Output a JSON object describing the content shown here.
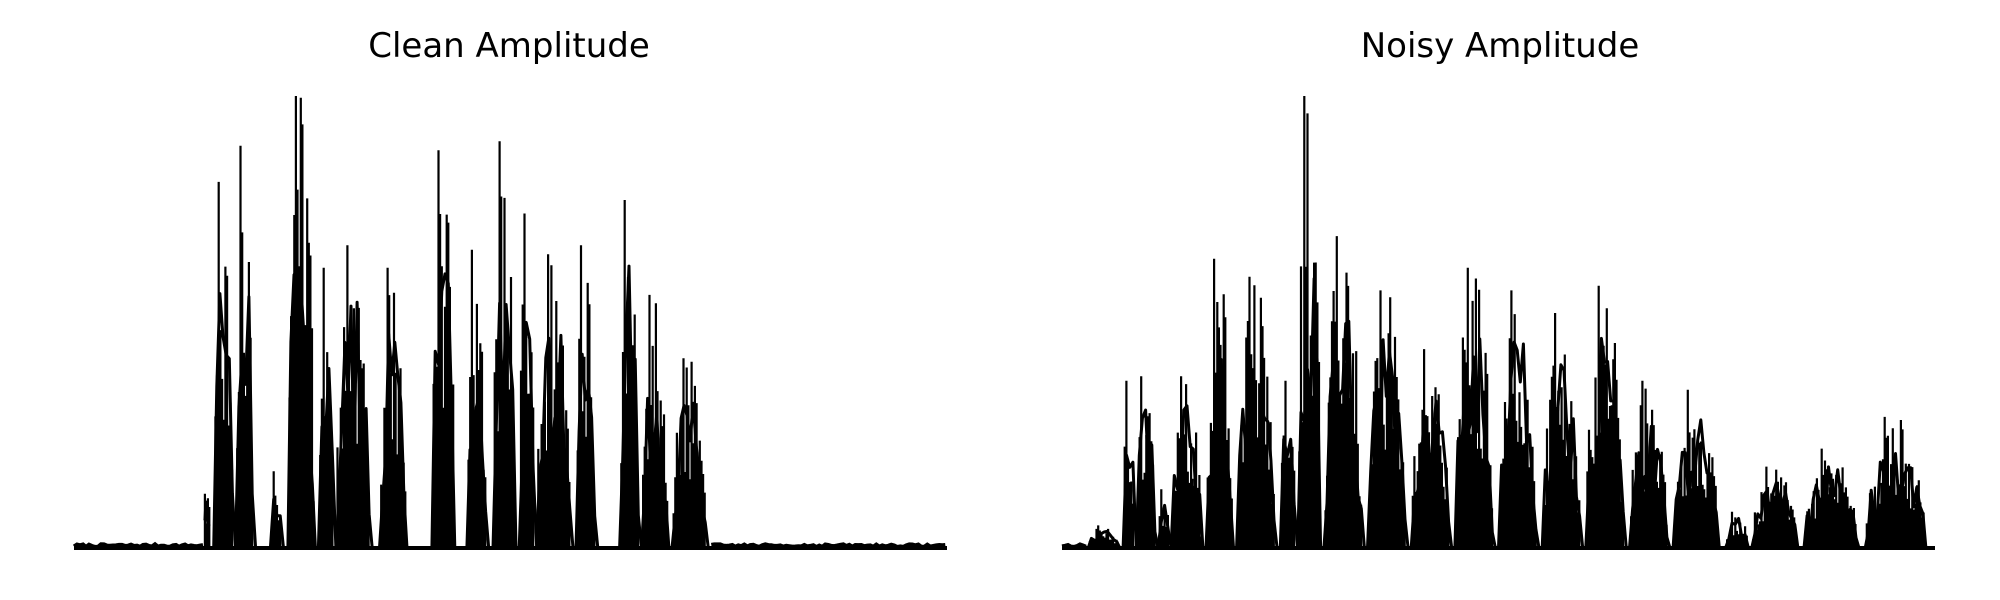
{
  "chart_data": [
    {
      "type": "line",
      "title": "Clean Amplitude",
      "xlabel": "",
      "ylabel": "",
      "axes_visible": false,
      "grid": false,
      "ylim": [
        0,
        1
      ],
      "color": "#000000",
      "segments": [
        {
          "start": 0.0,
          "end": 0.15,
          "peak": 0.01,
          "style": "flat"
        },
        {
          "start": 0.15,
          "end": 0.155,
          "peak": 0.12,
          "style": "spike"
        },
        {
          "start": 0.16,
          "end": 0.185,
          "peak": 0.81,
          "style": "burst"
        },
        {
          "start": 0.185,
          "end": 0.208,
          "peak": 0.89,
          "style": "burst"
        },
        {
          "start": 0.225,
          "end": 0.24,
          "peak": 0.17,
          "style": "burst"
        },
        {
          "start": 0.245,
          "end": 0.28,
          "peak": 1.0,
          "style": "burst"
        },
        {
          "start": 0.28,
          "end": 0.3,
          "peak": 0.62,
          "style": "burst"
        },
        {
          "start": 0.3,
          "end": 0.345,
          "peak": 0.67,
          "style": "burst"
        },
        {
          "start": 0.35,
          "end": 0.385,
          "peak": 0.62,
          "style": "burst"
        },
        {
          "start": 0.41,
          "end": 0.44,
          "peak": 0.88,
          "style": "burst"
        },
        {
          "start": 0.45,
          "end": 0.475,
          "peak": 0.66,
          "style": "burst"
        },
        {
          "start": 0.48,
          "end": 0.51,
          "peak": 0.9,
          "style": "burst"
        },
        {
          "start": 0.51,
          "end": 0.53,
          "peak": 0.74,
          "style": "burst"
        },
        {
          "start": 0.53,
          "end": 0.575,
          "peak": 0.65,
          "style": "burst"
        },
        {
          "start": 0.575,
          "end": 0.6,
          "peak": 0.67,
          "style": "burst"
        },
        {
          "start": 0.625,
          "end": 0.65,
          "peak": 0.77,
          "style": "burst"
        },
        {
          "start": 0.65,
          "end": 0.685,
          "peak": 0.56,
          "style": "burst"
        },
        {
          "start": 0.685,
          "end": 0.73,
          "peak": 0.42,
          "style": "burst"
        },
        {
          "start": 0.73,
          "end": 1.0,
          "peak": 0.01,
          "style": "flat"
        }
      ]
    },
    {
      "type": "line",
      "title": "Noisy Amplitude",
      "xlabel": "",
      "ylabel": "",
      "axes_visible": false,
      "grid": false,
      "ylim": [
        0,
        1
      ],
      "color": "#000000",
      "segments": [
        {
          "start": 0.0,
          "end": 0.03,
          "peak": 0.01,
          "style": "flat"
        },
        {
          "start": 0.03,
          "end": 0.07,
          "peak": 0.05,
          "style": "burst"
        },
        {
          "start": 0.07,
          "end": 0.085,
          "peak": 0.37,
          "style": "burst"
        },
        {
          "start": 0.085,
          "end": 0.11,
          "peak": 0.38,
          "style": "burst"
        },
        {
          "start": 0.11,
          "end": 0.125,
          "peak": 0.13,
          "style": "burst"
        },
        {
          "start": 0.125,
          "end": 0.165,
          "peak": 0.38,
          "style": "burst"
        },
        {
          "start": 0.165,
          "end": 0.2,
          "peak": 0.64,
          "style": "burst"
        },
        {
          "start": 0.2,
          "end": 0.25,
          "peak": 0.6,
          "style": "burst"
        },
        {
          "start": 0.25,
          "end": 0.27,
          "peak": 0.37,
          "style": "burst"
        },
        {
          "start": 0.27,
          "end": 0.3,
          "peak": 1.0,
          "style": "burst"
        },
        {
          "start": 0.3,
          "end": 0.35,
          "peak": 0.69,
          "style": "burst"
        },
        {
          "start": 0.35,
          "end": 0.4,
          "peak": 0.57,
          "style": "burst"
        },
        {
          "start": 0.4,
          "end": 0.45,
          "peak": 0.44,
          "style": "burst"
        },
        {
          "start": 0.45,
          "end": 0.5,
          "peak": 0.62,
          "style": "burst"
        },
        {
          "start": 0.5,
          "end": 0.55,
          "peak": 0.57,
          "style": "burst"
        },
        {
          "start": 0.55,
          "end": 0.6,
          "peak": 0.52,
          "style": "burst"
        },
        {
          "start": 0.6,
          "end": 0.65,
          "peak": 0.58,
          "style": "burst"
        },
        {
          "start": 0.65,
          "end": 0.7,
          "peak": 0.37,
          "style": "burst"
        },
        {
          "start": 0.7,
          "end": 0.76,
          "peak": 0.35,
          "style": "burst"
        },
        {
          "start": 0.76,
          "end": 0.79,
          "peak": 0.08,
          "style": "burst"
        },
        {
          "start": 0.79,
          "end": 0.85,
          "peak": 0.18,
          "style": "burst"
        },
        {
          "start": 0.85,
          "end": 0.92,
          "peak": 0.22,
          "style": "burst"
        },
        {
          "start": 0.92,
          "end": 1.0,
          "peak": 0.29,
          "style": "burst"
        }
      ]
    }
  ]
}
